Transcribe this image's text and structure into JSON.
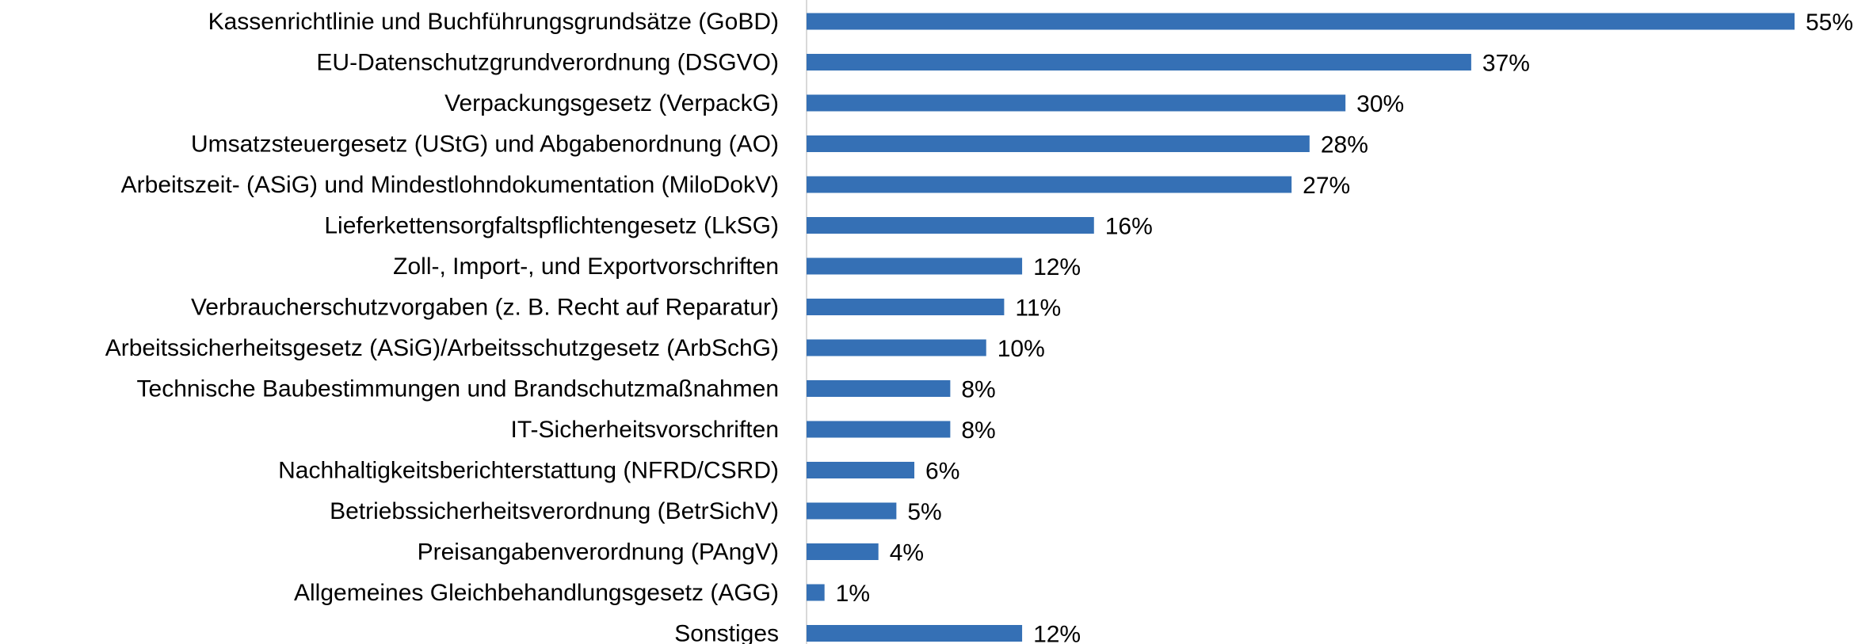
{
  "chart_data": {
    "type": "bar",
    "orientation": "horizontal",
    "color": "#3570b5",
    "categories": [
      "Kassenrichtlinie und Buchführungsgrundsätze (GoBD)",
      "EU-Datenschutzgrundverordnung (DSGVO)",
      "Verpackungsgesetz (VerpackG)",
      "Umsatzsteuergesetz (UStG) und Abgabenordnung (AO)",
      "Arbeitszeit- (ASiG) und Mindestlohndokumentation (MiloDokV)",
      "Lieferkettensorgfaltspflichtengesetz (LkSG)",
      "Zoll-, Import-, und Exportvorschriften",
      "Verbraucherschutzvorgaben (z. B. Recht auf Reparatur)",
      "Arbeitssicherheitsgesetz (ASiG)/Arbeitsschutzgesetz (ArbSchG)",
      "Technische Baubestimmungen und Brandschutzmaßnahmen",
      "IT-Sicherheitsvorschriften",
      "Nachhaltigkeitsberichterstattung (NFRD/CSRD)",
      "Betriebssicherheitsverordnung (BetrSichV)",
      "Preisangabenverordnung (PAngV)",
      "Allgemeines Gleichbehandlungsgesetz (AGG)",
      "Sonstiges"
    ],
    "values": [
      55,
      37,
      30,
      28,
      27,
      16,
      12,
      11,
      10,
      8,
      8,
      6,
      5,
      4,
      1,
      12
    ],
    "value_labels": [
      "55%",
      "37%",
      "30%",
      "28%",
      "27%",
      "16%",
      "12%",
      "11%",
      "10%",
      "8%",
      "8%",
      "6%",
      "5%",
      "4%",
      "1%",
      "12%"
    ]
  }
}
